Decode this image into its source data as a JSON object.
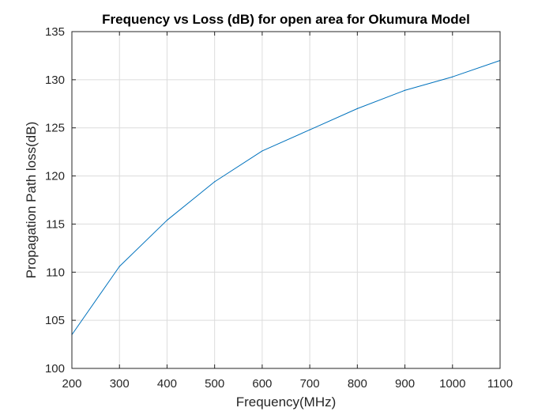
{
  "chart_data": {
    "type": "line",
    "title": "Frequency vs Loss (dB) for open area for Okumura Model",
    "xlabel": "Frequency(MHz)",
    "ylabel": "Propagation Path loss(dB)",
    "xlim": [
      200,
      1100
    ],
    "ylim": [
      100,
      135
    ],
    "xticks": [
      200,
      300,
      400,
      500,
      600,
      700,
      800,
      900,
      1000,
      1100
    ],
    "yticks": [
      100,
      105,
      110,
      115,
      120,
      125,
      130,
      135
    ],
    "grid": true,
    "series": [
      {
        "color": "#0072BD",
        "x": [
          200,
          300,
          400,
          500,
          600,
          700,
          800,
          900,
          1000,
          1100
        ],
        "y": [
          103.5,
          110.6,
          115.4,
          119.4,
          122.6,
          124.8,
          127.0,
          128.9,
          130.3,
          132.0
        ]
      }
    ]
  },
  "colors": {
    "line": "#0072BD",
    "grid": "#dcdcdc",
    "axis": "#262626"
  }
}
